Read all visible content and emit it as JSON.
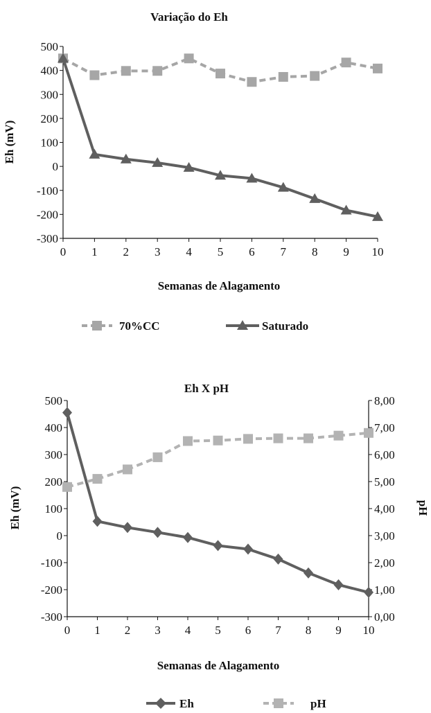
{
  "chart_data": [
    {
      "type": "line",
      "title": "Variação do Eh",
      "xlabel": "Semanas de Alagamento",
      "ylabel": "Eh (mV)",
      "x": [
        0,
        1,
        2,
        3,
        4,
        5,
        6,
        7,
        8,
        9,
        10
      ],
      "xlim": [
        0,
        10
      ],
      "ylim": [
        -300,
        500
      ],
      "yticks": [
        -300,
        -200,
        -100,
        0,
        100,
        200,
        300,
        400,
        500
      ],
      "legend_position": "bottom",
      "series": [
        {
          "name": "70%CC",
          "marker": "square",
          "style": "dashed",
          "color": "#a6a6a6",
          "values": [
            450,
            380,
            398,
            398,
            450,
            387,
            352,
            373,
            377,
            433,
            408
          ]
        },
        {
          "name": "Saturado",
          "marker": "triangle",
          "style": "solid",
          "color": "#5f5f5f",
          "values": [
            450,
            50,
            30,
            15,
            -5,
            -38,
            -50,
            -88,
            -135,
            -183,
            -210
          ]
        }
      ]
    },
    {
      "type": "line",
      "title": "Eh X pH",
      "xlabel": "Semanas de Alagamento",
      "ylabel": "Eh (mV)",
      "ylabel_right": "pH",
      "x": [
        0,
        1,
        2,
        3,
        4,
        5,
        6,
        7,
        8,
        9,
        10
      ],
      "xlim": [
        0,
        10
      ],
      "ylim": [
        -300,
        500
      ],
      "yticks": [
        -300,
        -200,
        -100,
        0,
        100,
        200,
        300,
        400,
        500
      ],
      "ylim_right": [
        0,
        8
      ],
      "yticks_right": [
        "0,00",
        "1,00",
        "2,00",
        "3,00",
        "4,00",
        "5,00",
        "6,00",
        "7,00",
        "8,00"
      ],
      "legend_position": "bottom",
      "series": [
        {
          "name": "Eh",
          "marker": "diamond",
          "style": "solid",
          "color": "#5f5f5f",
          "axis": "left",
          "values": [
            455,
            53,
            30,
            12,
            -7,
            -37,
            -50,
            -87,
            -138,
            -182,
            -210
          ]
        },
        {
          "name": "pH",
          "marker": "square",
          "style": "dashed",
          "color": "#b3b3b3",
          "axis": "right",
          "values": [
            4.8,
            5.1,
            5.45,
            5.9,
            6.5,
            6.52,
            6.58,
            6.6,
            6.6,
            6.7,
            6.8
          ]
        }
      ]
    }
  ]
}
